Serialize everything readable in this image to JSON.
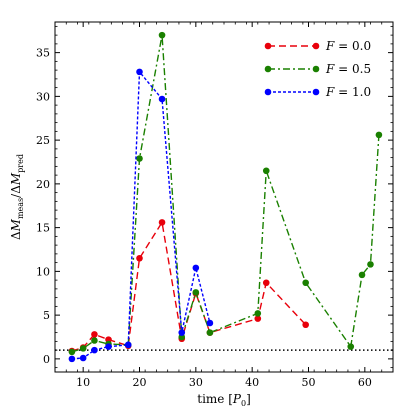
{
  "chart_data": {
    "type": "line",
    "xlabel": "time [P0]",
    "ylabel": "ΔM_meas / ΔM_pred",
    "xlim": [
      5,
      65
    ],
    "ylim": [
      -1.5,
      38.5
    ],
    "x_ticks": [
      10,
      20,
      30,
      40,
      50,
      60
    ],
    "y_ticks": [
      0,
      5,
      10,
      15,
      20,
      25,
      30,
      35
    ],
    "legend_position": "top-right",
    "reference_line": {
      "y": 1,
      "style": "dotted",
      "color": "#000000"
    },
    "series": [
      {
        "name": "F = 0.0",
        "legend_var": "F",
        "legend_val": "= 0.0",
        "color": "#e8000b",
        "dash": "dashed",
        "x": [
          8.0,
          10.0,
          12.0,
          14.5,
          18.0,
          20.0,
          24.0,
          27.5,
          30.0,
          32.5,
          41.0,
          42.5,
          49.5
        ],
        "y": [
          0.9,
          1.3,
          2.8,
          2.2,
          1.5,
          11.5,
          15.6,
          2.3,
          7.5,
          3.0,
          4.6,
          8.7,
          3.9
        ]
      },
      {
        "name": "F = 0.5",
        "legend_var": "F",
        "legend_val": "= 0.5",
        "color": "#1a8000",
        "dash": "dashdot",
        "x": [
          8.0,
          10.0,
          12.0,
          14.5,
          18.0,
          20.0,
          24.0,
          27.5,
          30.0,
          32.5,
          41.0,
          42.5,
          49.5,
          57.5,
          59.5,
          61.0,
          62.5
        ],
        "y": [
          0.8,
          1.2,
          2.1,
          1.7,
          1.6,
          22.9,
          37.0,
          2.5,
          7.6,
          3.0,
          5.2,
          21.5,
          8.7,
          1.4,
          9.6,
          10.8,
          25.6
        ]
      },
      {
        "name": "F = 1.0",
        "legend_var": "F",
        "legend_val": "= 1.0",
        "color": "#0000ff",
        "dash": "dotted",
        "x": [
          8.0,
          10.0,
          12.0,
          14.5,
          18.0,
          20.0,
          24.0,
          27.5,
          30.0,
          32.5
        ],
        "y": [
          0.0,
          0.1,
          1.0,
          1.4,
          1.6,
          32.8,
          29.7,
          3.0,
          10.4,
          4.1
        ]
      }
    ]
  }
}
